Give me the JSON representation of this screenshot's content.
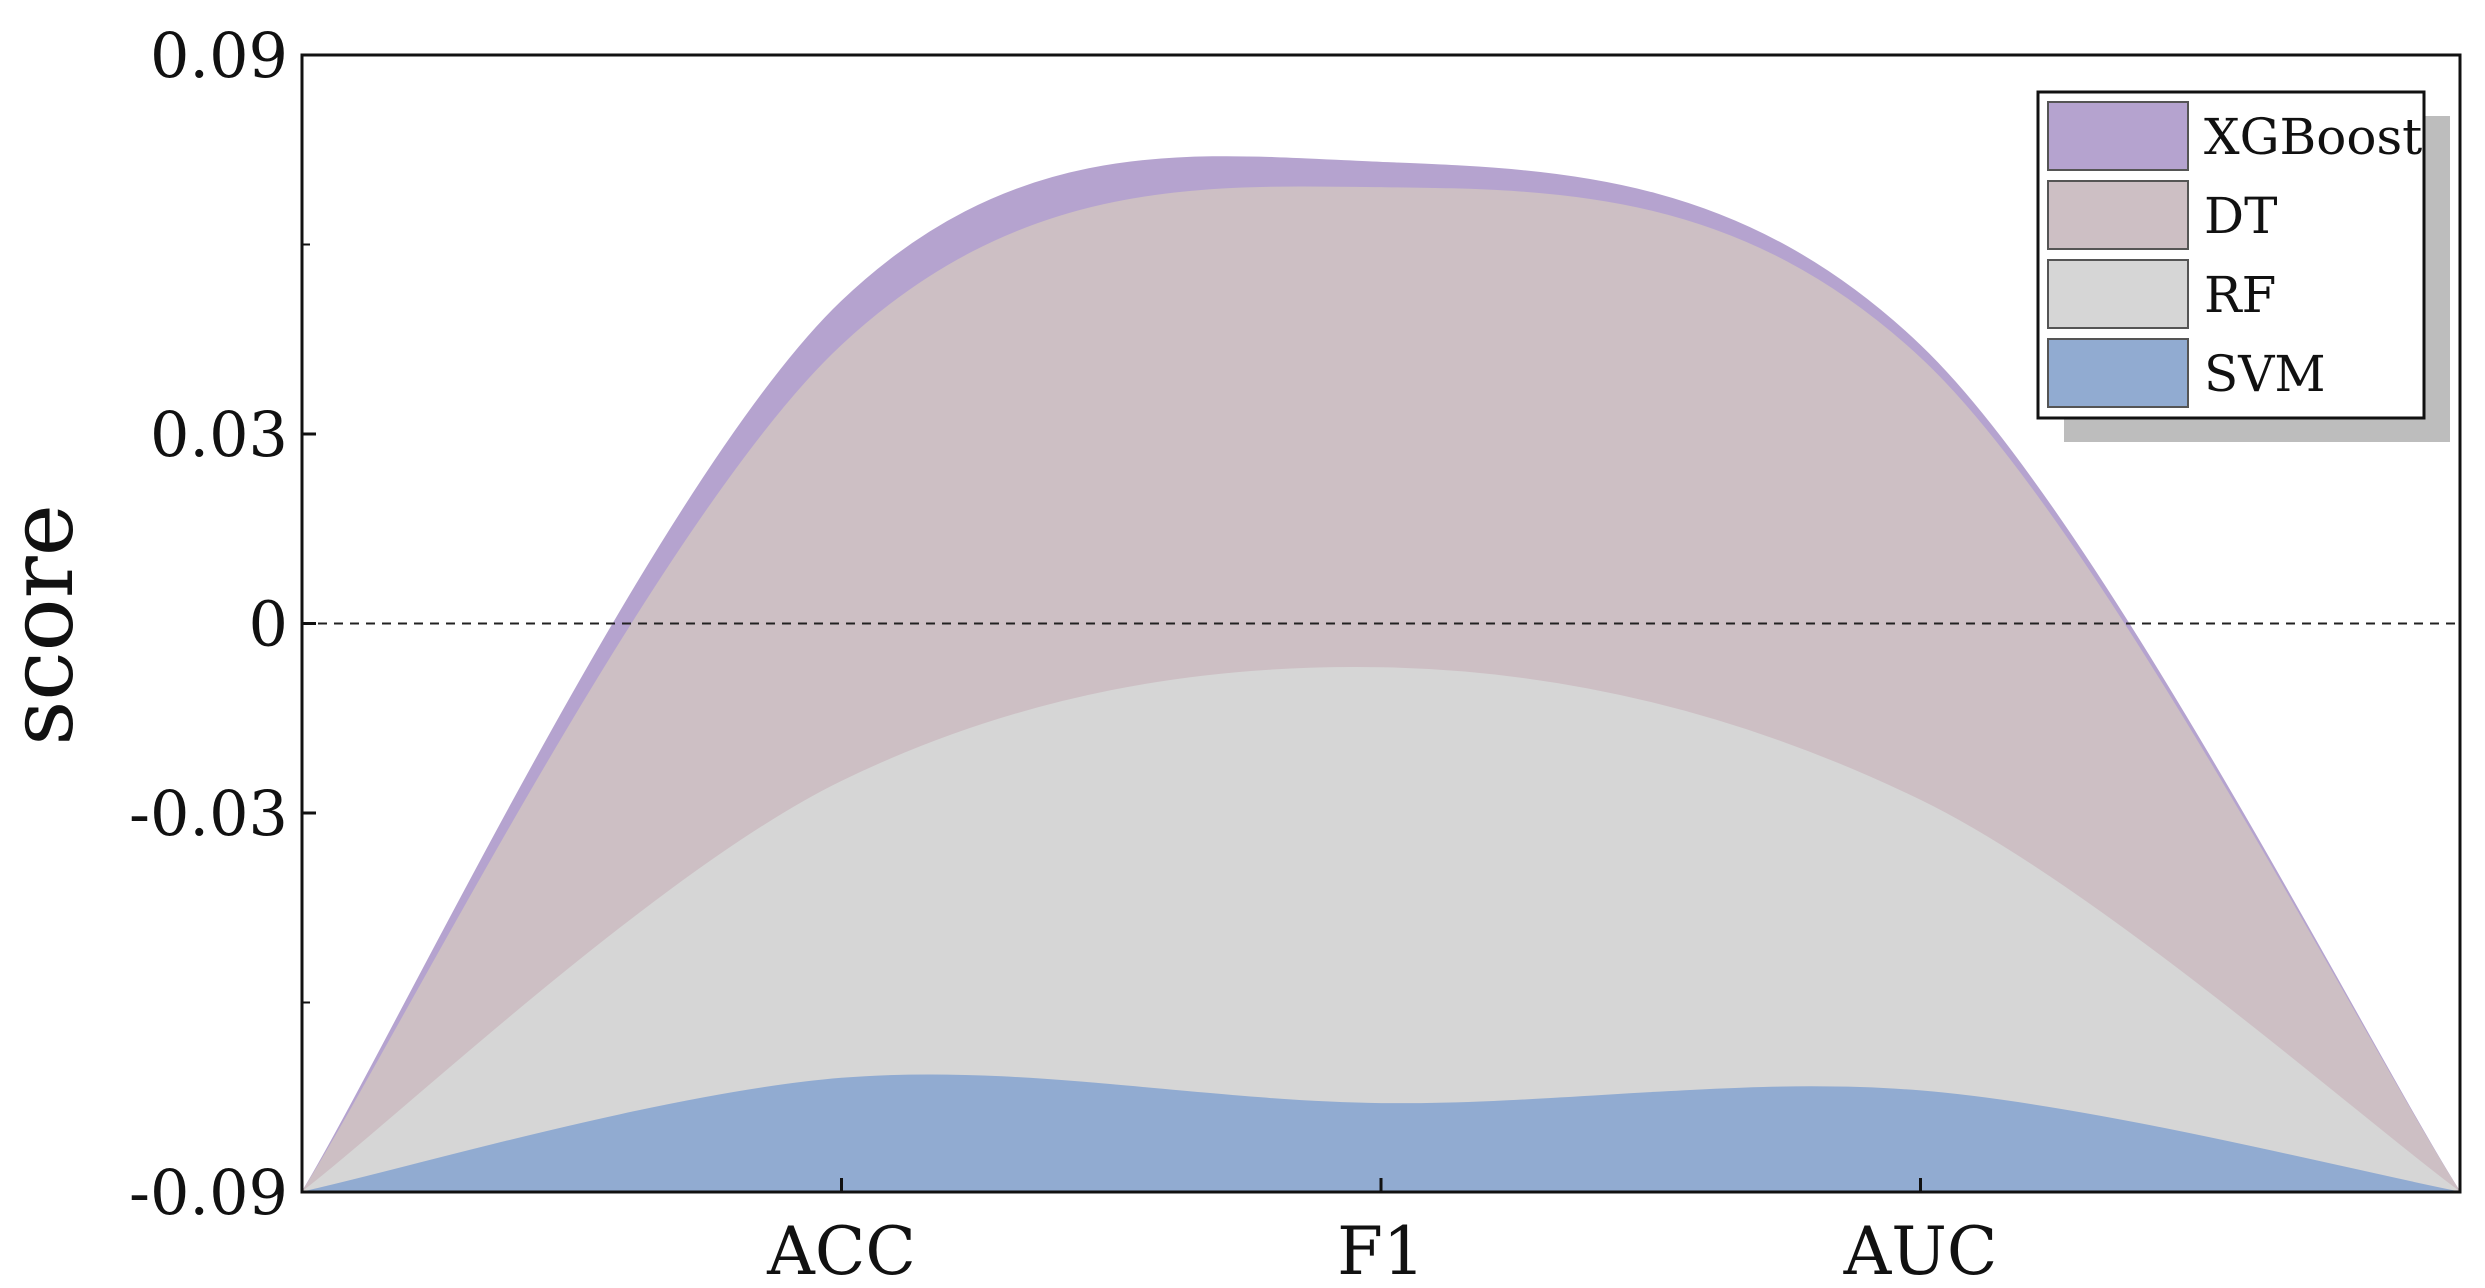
{
  "chart_data": {
    "type": "area",
    "ylabel": "score",
    "xlabel": "",
    "title": "",
    "categories": [
      "ACC",
      "F1",
      "AUC"
    ],
    "ylim": [
      -0.09,
      0.09
    ],
    "yticks": [
      0.09,
      0.03,
      0,
      -0.03,
      -0.09
    ],
    "ytick_labels": [
      "0.09",
      "0.03",
      "0",
      "-0.03",
      "-0.09"
    ],
    "zero_line": "dashed",
    "legend_position": "top-right",
    "series": [
      {
        "name": "XGBoost",
        "color": "#b5a3cf",
        "values": [
          0.051,
          0.073,
          0.044
        ]
      },
      {
        "name": "DT",
        "color": "#cdbfc4",
        "values": [
          0.044,
          0.069,
          0.042
        ]
      },
      {
        "name": "RF",
        "color": "#d6d6d6",
        "values": [
          -0.025,
          -0.007,
          -0.028
        ]
      },
      {
        "name": "SVM",
        "color": "#91abd1",
        "values": [
          -0.072,
          -0.076,
          -0.074
        ]
      }
    ]
  }
}
